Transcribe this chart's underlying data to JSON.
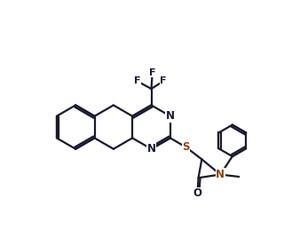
{
  "bg_color": "#ffffff",
  "line_color": "#1a1a2e",
  "sulfur_color": "#8B4513",
  "nitrogen_color": "#1a1a2e",
  "bond_lw": 1.6,
  "dpi": 100,
  "fig_width": 3.2,
  "fig_height": 2.77,
  "xlim": [
    0,
    10
  ],
  "ylim": [
    0,
    8.66
  ]
}
